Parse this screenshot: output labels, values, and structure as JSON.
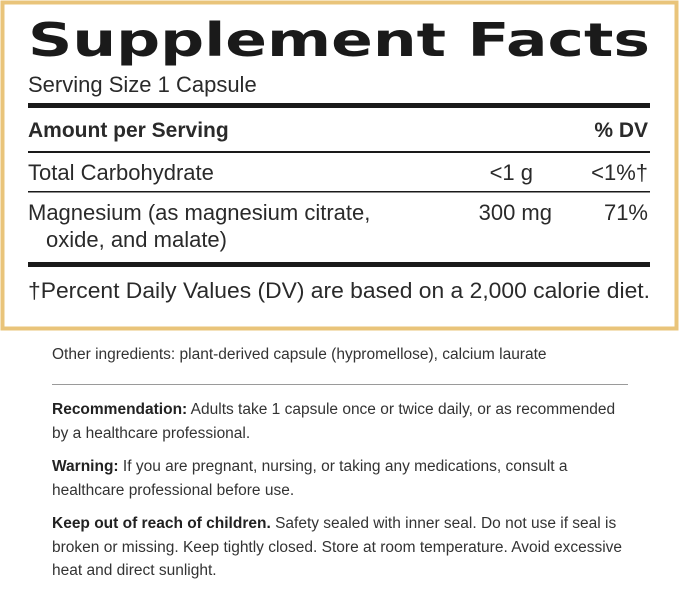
{
  "facts": {
    "title": "Supplement Facts",
    "serving_size": "Serving Size 1 Capsule",
    "header": {
      "amount": "Amount per Serving",
      "dv": "% DV"
    },
    "rows": [
      {
        "name_lines": [
          "Total Carbohydrate"
        ],
        "amount": "<1 g",
        "dv": "<1%†"
      },
      {
        "name_lines": [
          "Magnesium (as magnesium citrate,",
          "oxide, and malate)"
        ],
        "amount": "300 mg",
        "dv": "71%"
      }
    ],
    "footnote": "†Percent Daily Values (DV) are based on a 2,000 calorie diet."
  },
  "other_ingredients": "Other ingredients: plant-derived capsule (hypromellose), calcium laurate",
  "sections": [
    {
      "label": "Recommendation:",
      "text": "Adults take 1 capsule once or twice daily, or as recommended by a healthcare professional."
    },
    {
      "label": "Warning:",
      "text": "If you are pregnant, nursing, or taking any medications, consult a healthcare professional before use."
    },
    {
      "label": "Keep out of reach of children.",
      "text": "Safety sealed with inner seal. Do not use if seal is broken or missing. Keep tightly closed. Store at room temperature. Avoid excessive heat and direct sunlight."
    }
  ]
}
